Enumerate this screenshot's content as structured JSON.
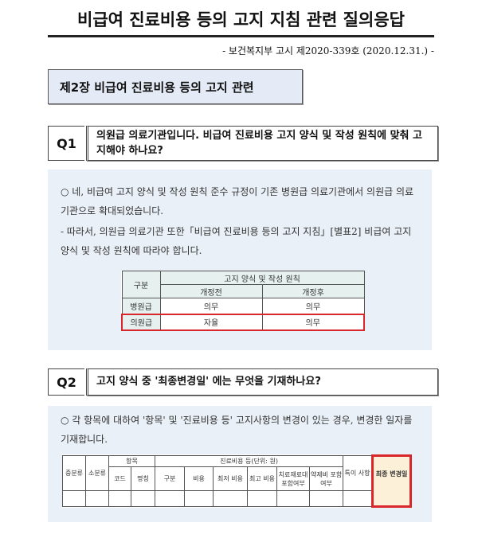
{
  "title": "비급여 진료비용 등의 고지 지침 관련 질의응답",
  "subtitle": "- 보건복지부 고시 제2020-339호 (2020.12.31.) -",
  "chapter": "제2장 비급여 진료비용 등의 고지 관련",
  "q1": {
    "label": "Q1",
    "question": "의원급 의료기관입니다. 비급여 진료비용 고지 양식 및 작성 원칙에 맞춰 고지해야 하나요?",
    "answer1": "○ 네, 비급여 고지 양식 및 작성 원칙 준수 규정이 기존 병원급 의료기관에서 의원급 의료기관으로 확대되었습니다.",
    "answer2": "- 따라서, 의원급 의료기관 또한「비급여 진료비용 등의 고지 지침」[별표2] 비급여 고지 양식 및 작성 원칙에 따라야 합니다.",
    "table": {
      "col0": "구분",
      "group": "고지 양식 및 작성 원칙",
      "before": "개정전",
      "after": "개정후",
      "rows": [
        {
          "type": "병원급",
          "before": "의무",
          "after": "의무"
        },
        {
          "type": "의원급",
          "before": "자율",
          "after": "의무"
        }
      ]
    }
  },
  "q2": {
    "label": "Q2",
    "question": "고지 양식 중  '최종변경일' 에는 무엇을 기재하나요?",
    "answer": "○ 각 항목에 대하여 '항목' 및 '진료비용 등' 고지사항의 변경이 있는 경우, 변경한 일자를 기재합니다.",
    "table": {
      "mid": "중분류",
      "small": "소분류",
      "item": "항목",
      "code": "코드",
      "name": "명칭",
      "cost_group": "진료비용 등(단위: 원)",
      "kind": "구분",
      "cost": "비용",
      "min": "최저 비용",
      "max": "최고 비용",
      "material": "치료재료대 포함여부",
      "drug": "약제비 포함여부",
      "note": "특이 사항",
      "last": "최종 변경일"
    }
  },
  "colors": {
    "highlight": "#d9262b",
    "answer_bg": "#eaf0f7",
    "chapter_bg": "#e4ebf6",
    "last_col_bg": "#fdf0d8"
  }
}
